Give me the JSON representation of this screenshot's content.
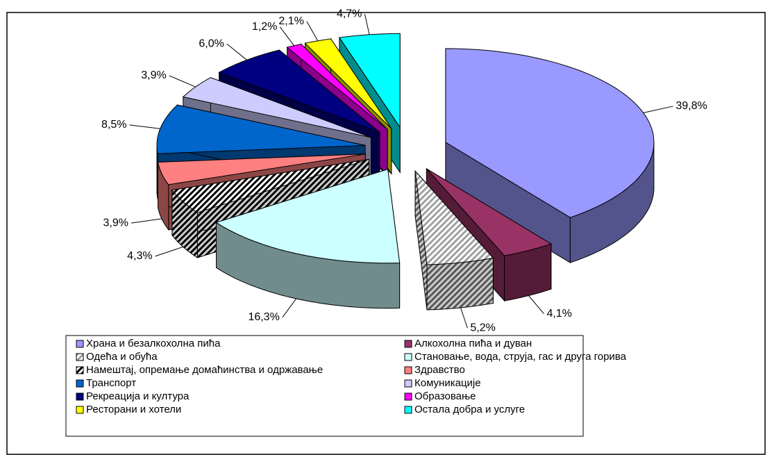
{
  "chart_data": {
    "type": "pie3d",
    "categories": [
      "Храна и безалкохолна пића",
      "Алкохолна пића и дуван",
      "Одећа и обућа",
      "Становање, вода, струја, гас и друга горива",
      "Намештај, опремање домаћинства и одржавање",
      "Здравство",
      "Транспорт",
      "Комуникације",
      "Рекреација и култура",
      "Образовање",
      "Ресторани и хотели",
      "Остала добра и услуге"
    ],
    "values": [
      39.8,
      4.1,
      5.2,
      16.3,
      4.3,
      3.9,
      8.5,
      3.9,
      6.0,
      1.2,
      2.1,
      4.7
    ],
    "value_labels": [
      "39,8%",
      "4,1%",
      "5,2%",
      "16,3%",
      "4,3%",
      "3,9%",
      "8,5%",
      "3,9%",
      "6,0%",
      "1,2%",
      "2,1%",
      "4,7%"
    ],
    "colors": [
      "#9999ff",
      "#993366",
      "#a0a0a0",
      "#ccffff",
      "#000000",
      "#ff8080",
      "#0066cc",
      "#ccccff",
      "#000080",
      "#ff00ff",
      "#ffff00",
      "#00ffff"
    ],
    "hatched": [
      false,
      false,
      true,
      false,
      true,
      false,
      false,
      false,
      false,
      false,
      false,
      false
    ],
    "legend": true
  }
}
